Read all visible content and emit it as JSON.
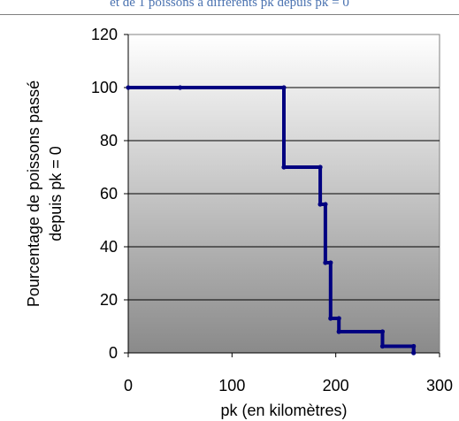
{
  "header": {
    "caption": "et de 1  poissons à différents  pk depuis pk = 0",
    "rule_color": "#7f7f7f",
    "caption_color": "#4a72b0"
  },
  "chart_data": {
    "type": "line",
    "step": true,
    "title": "",
    "xlabel": "pk (en kilomètres)",
    "ylabel_lines": [
      "Pourcentage de poissons passé",
      "depuis pk = 0"
    ],
    "xlim": [
      0,
      300
    ],
    "ylim": [
      0,
      120
    ],
    "xticks": [
      0,
      100,
      200,
      300
    ],
    "yticks": [
      0,
      20,
      40,
      60,
      80,
      100,
      120
    ],
    "grid": "horizontal",
    "legend": "none",
    "plot_background": "gradient white to gray",
    "series": [
      {
        "color": "#000080",
        "x": [
          0,
          50,
          150,
          150,
          185,
          185,
          190,
          190,
          195,
          195,
          203,
          203,
          245,
          245,
          275,
          275
        ],
        "y": [
          100,
          100,
          100,
          70,
          70,
          56,
          56,
          34,
          34,
          13,
          13,
          8,
          8,
          2.5,
          2.5,
          0
        ]
      }
    ]
  }
}
